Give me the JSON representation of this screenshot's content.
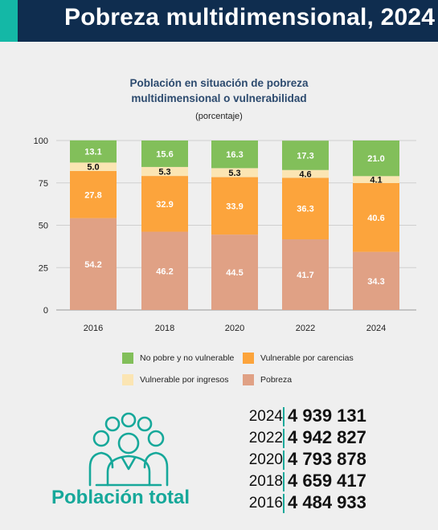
{
  "header": {
    "title": "Pobreza multidimensional, 2024"
  },
  "colors": {
    "header_bg": "#0f2d4f",
    "accent": "#14b8a6",
    "no_pobre": "#82bf5a",
    "vuln_carencias": "#fca43c",
    "vuln_ingresos": "#fbe5b3",
    "pobreza": "#e0a185"
  },
  "chart_data": {
    "type": "bar",
    "stacked": true,
    "title": "Población en situación de pobreza multidimensional o vulnerabilidad",
    "title_lines": [
      "Población en situación de pobreza",
      "multidimensional o vulnerabilidad"
    ],
    "subtitle": "(porcentaje)",
    "categories": [
      "2016",
      "2018",
      "2020",
      "2022",
      "2024"
    ],
    "ylim": [
      0,
      100
    ],
    "yticks": [
      0,
      25,
      50,
      75,
      100
    ],
    "grid": true,
    "legend_position": "bottom",
    "series": [
      {
        "name": "Pobreza",
        "color": "#e0a185",
        "values": [
          54.2,
          46.2,
          44.5,
          41.7,
          34.3
        ]
      },
      {
        "name": "Vulnerable por carencias",
        "color": "#fca43c",
        "values": [
          27.8,
          32.9,
          33.9,
          36.3,
          40.6
        ]
      },
      {
        "name": "Vulnerable por ingresos",
        "color": "#fbe5b3",
        "values": [
          5.0,
          5.3,
          5.3,
          4.6,
          4.1
        ]
      },
      {
        "name": "No pobre y no vulnerable",
        "color": "#82bf5a",
        "values": [
          13.1,
          15.6,
          16.3,
          17.3,
          21.0
        ]
      }
    ]
  },
  "legend": {
    "items": [
      {
        "label": "No pobre y no vulnerable",
        "color": "#82bf5a"
      },
      {
        "label": "Vulnerable por carencias",
        "color": "#fca43c"
      },
      {
        "label": "Vulnerable por ingresos",
        "color": "#fbe5b3"
      },
      {
        "label": "Pobreza",
        "color": "#e0a185"
      }
    ]
  },
  "population": {
    "label": "Población total",
    "icon": "people-group-icon",
    "rows": [
      {
        "year": "2024",
        "value": "4 939 131"
      },
      {
        "year": "2022",
        "value": "4 942 827"
      },
      {
        "year": "2020",
        "value": "4 793 878"
      },
      {
        "year": "2018",
        "value": "4 659 417"
      },
      {
        "year": "2016",
        "value": "4 484 933"
      }
    ]
  }
}
